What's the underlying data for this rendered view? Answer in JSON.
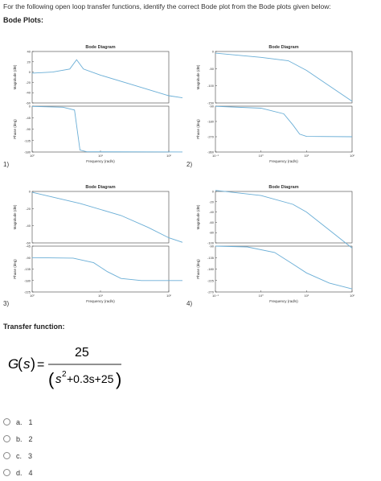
{
  "question": {
    "text": "For the following open loop transfer functions, identify the correct Bode plot from the Bode plots given below:"
  },
  "bode_section": {
    "title": "Bode Plots:"
  },
  "bode_plots": [
    {
      "index": "1)",
      "title": "Bode Diagram",
      "mag_label": "Magnitude (dB)",
      "phase_label": "Phase (deg)",
      "freq_label": "Frequency (rad/s)",
      "mag_ticks": [
        "40",
        "20",
        "0",
        "-20",
        "-40",
        "-60"
      ],
      "phase_ticks": [
        "0",
        "-45",
        "-90",
        "-135",
        "-180"
      ],
      "freq_ticks": [
        "10⁰",
        "10¹",
        "10²"
      ],
      "mag_curve": [
        [
          0,
          -2
        ],
        [
          0.3,
          0
        ],
        [
          0.55,
          6
        ],
        [
          0.65,
          24
        ],
        [
          0.75,
          6
        ],
        [
          1,
          -6
        ],
        [
          1.5,
          -26
        ],
        [
          2,
          -46
        ],
        [
          2.3,
          -52
        ]
      ],
      "phase_curve": [
        [
          0,
          -1
        ],
        [
          0.45,
          -4
        ],
        [
          0.62,
          -15
        ],
        [
          0.7,
          -172
        ],
        [
          0.8,
          -179
        ],
        [
          2.3,
          -180
        ]
      ]
    },
    {
      "index": "2)",
      "title": "Bode Diagram",
      "mag_label": "Magnitude (dB)",
      "phase_label": "Phase (deg)",
      "freq_label": "Frequency (rad/s)",
      "mag_ticks": [
        "0",
        "-50",
        "-100",
        "-150"
      ],
      "phase_ticks": [
        "-90",
        "-180",
        "-270",
        "-360"
      ],
      "freq_ticks": [
        "10⁻¹",
        "10⁰",
        "10¹",
        "10²"
      ],
      "mag_curve": [
        [
          -1,
          -5
        ],
        [
          0,
          -17
        ],
        [
          0.6,
          -27
        ],
        [
          1,
          -55
        ],
        [
          1.5,
          -100
        ],
        [
          2,
          -145
        ]
      ],
      "phase_curve": [
        [
          -1,
          -91
        ],
        [
          0,
          -102
        ],
        [
          0.5,
          -135
        ],
        [
          0.7,
          -200
        ],
        [
          0.85,
          -255
        ],
        [
          1,
          -268
        ],
        [
          2,
          -270
        ]
      ]
    },
    {
      "index": "3)",
      "title": "Bode Diagram",
      "mag_label": "Magnitude (dB)",
      "phase_label": "Phase (deg)",
      "freq_label": "Frequency (rad/s)",
      "mag_ticks": [
        "0",
        "-20",
        "-40",
        "-60"
      ],
      "phase_ticks": [
        "-45",
        "-90",
        "-135",
        "-180",
        "-225"
      ],
      "freq_ticks": [
        "10⁰",
        "10¹",
        "10²"
      ],
      "mag_curve": [
        [
          0,
          -1
        ],
        [
          0.7,
          -14
        ],
        [
          1.3,
          -28
        ],
        [
          1.7,
          -42
        ],
        [
          2,
          -54
        ],
        [
          2.3,
          -62
        ]
      ],
      "phase_curve": [
        [
          0,
          -90
        ],
        [
          0.6,
          -92
        ],
        [
          0.9,
          -110
        ],
        [
          1.1,
          -145
        ],
        [
          1.3,
          -172
        ],
        [
          1.6,
          -180
        ],
        [
          2.3,
          -180
        ]
      ]
    },
    {
      "index": "4)",
      "title": "Bode Diagram",
      "mag_label": "Magnitude (dB)",
      "phase_label": "Phase (deg)",
      "freq_label": "Frequency (rad/s)",
      "mag_ticks": [
        "0",
        "-20",
        "-40",
        "-60",
        "-80",
        "-100"
      ],
      "phase_ticks": [
        "-90",
        "-135",
        "-180",
        "-225",
        "-270"
      ],
      "freq_ticks": [
        "10⁻¹",
        "10⁰",
        "10¹",
        "10²"
      ],
      "mag_curve": [
        [
          -1,
          2
        ],
        [
          0,
          -8
        ],
        [
          0.7,
          -25
        ],
        [
          1,
          -40
        ],
        [
          1.5,
          -75
        ],
        [
          2,
          -110
        ]
      ],
      "phase_curve": [
        [
          -1,
          -90
        ],
        [
          -0.3,
          -93
        ],
        [
          0.3,
          -115
        ],
        [
          0.7,
          -160
        ],
        [
          1,
          -195
        ],
        [
          1.5,
          -235
        ],
        [
          2,
          -258
        ]
      ]
    }
  ],
  "transfer_function": {
    "title": "Transfer function:",
    "lhs": "G",
    "var": "s",
    "numerator": "25",
    "denominator_rest": "+0.3s+25"
  },
  "options": [
    {
      "letter": "a.",
      "value": "1"
    },
    {
      "letter": "b.",
      "value": "2"
    },
    {
      "letter": "c.",
      "value": "3"
    },
    {
      "letter": "d.",
      "value": "4"
    }
  ],
  "colors": {
    "curve": "#6aaed6",
    "axis": "#444444",
    "grid": "#cccccc"
  }
}
